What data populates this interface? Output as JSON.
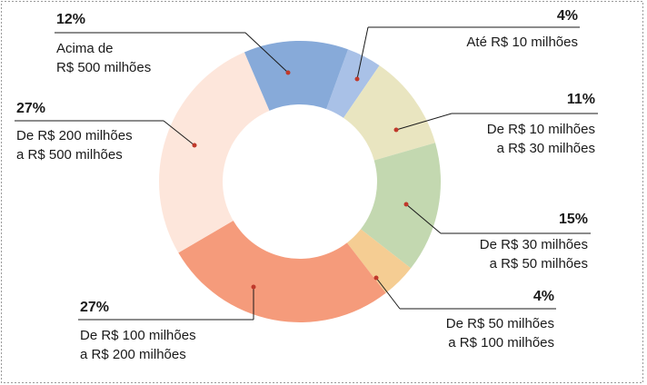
{
  "chart_data": {
    "type": "donut",
    "categories": [
      [
        "Até R$ 10 milhões"
      ],
      [
        "De R$ 10 milhões",
        "a R$ 30 milhões"
      ],
      [
        "De R$ 30 milhões",
        "a R$ 50 milhões"
      ],
      [
        "De R$ 50 milhões",
        "a R$ 100 milhões"
      ],
      [
        "De R$ 100 milhões",
        "a R$ 200 milhões"
      ],
      [
        "De R$ 200 milhões",
        "a R$ 500 milhões"
      ],
      [
        "Acima de",
        "R$ 500 milhões"
      ]
    ],
    "values": [
      4,
      11,
      15,
      4,
      27,
      27,
      12
    ],
    "value_labels": [
      "4%",
      "11%",
      "15%",
      "4%",
      "27%",
      "27%",
      "12%"
    ],
    "colors": [
      "#a9c1e7",
      "#e9e5c0",
      "#c3d8b0",
      "#f5cd93",
      "#f59b7b",
      "#fde6db",
      "#87aad9"
    ]
  }
}
